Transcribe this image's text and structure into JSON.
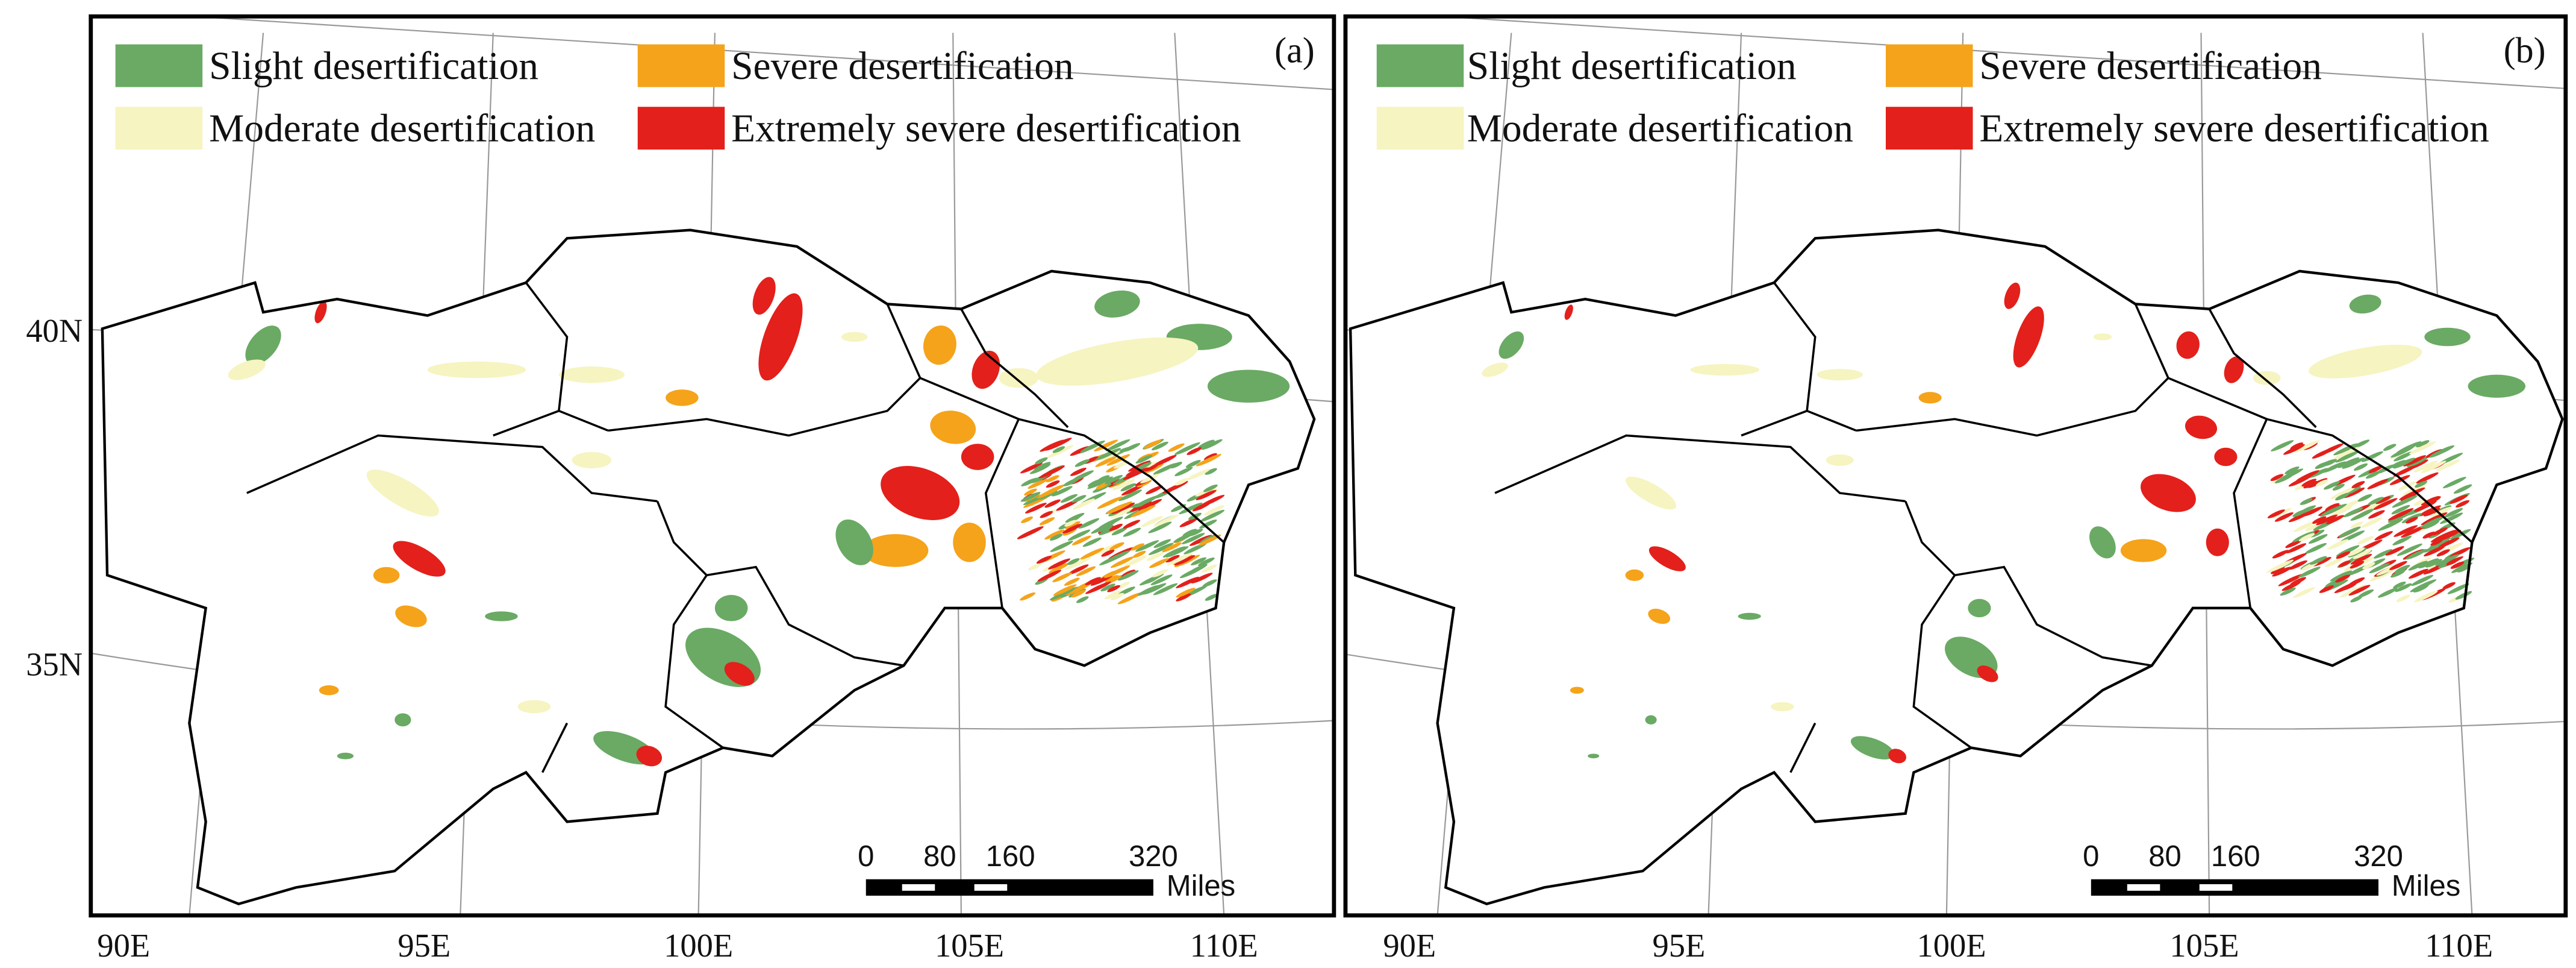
{
  "panels": [
    {
      "label": "(a)",
      "legend": [
        {
          "name": "Slight desertification",
          "color": "#6aaa64"
        },
        {
          "name": "Moderate desertification",
          "color": "#f6f4c0"
        },
        {
          "name": "Severe desertification",
          "color": "#f5a31a"
        },
        {
          "name": "Extremely severe desertification",
          "color": "#e3201b"
        }
      ],
      "latitude_labels": [
        "40N",
        "35N"
      ],
      "longitude_labels": [
        "90E",
        "95E",
        "100E",
        "105E",
        "110E"
      ],
      "scale_bar": {
        "ticks": [
          "0",
          "80",
          "160",
          "320"
        ],
        "unit": "Miles"
      }
    },
    {
      "label": "(b)",
      "legend": [
        {
          "name": "Slight desertification",
          "color": "#6aaa64"
        },
        {
          "name": "Moderate desertification",
          "color": "#f6f4c0"
        },
        {
          "name": "Severe desertification",
          "color": "#f5a31a"
        },
        {
          "name": "Extremely severe desertification",
          "color": "#e3201b"
        }
      ],
      "longitude_labels": [
        "90E",
        "95E",
        "100E",
        "105E",
        "110E"
      ],
      "scale_bar": {
        "ticks": [
          "0",
          "80",
          "160",
          "320"
        ],
        "unit": "Miles"
      }
    }
  ]
}
